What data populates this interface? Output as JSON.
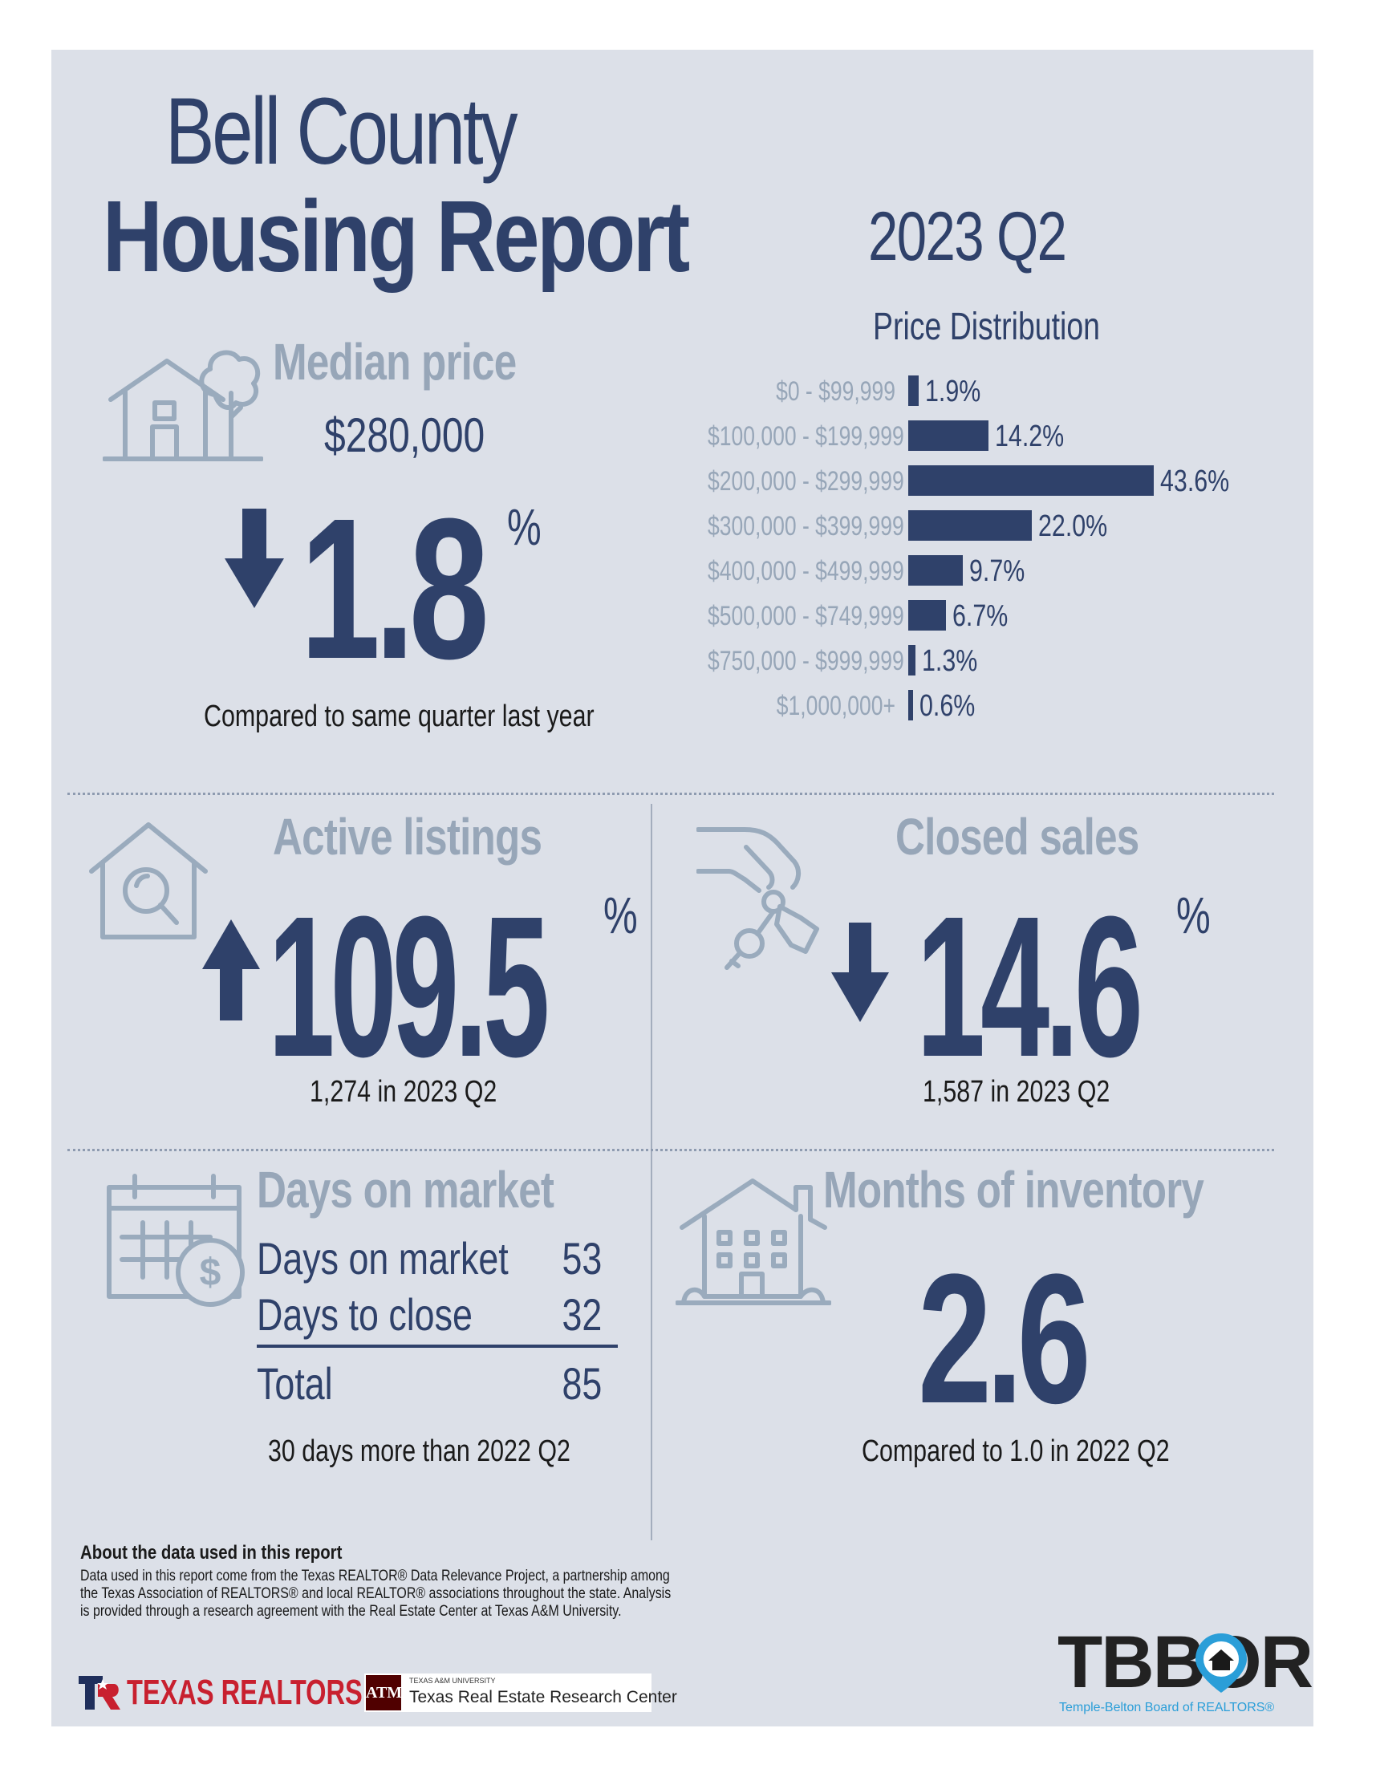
{
  "header": {
    "title_line1": "Bell County",
    "title_line2": "Housing Report",
    "period": "2023 Q2"
  },
  "median_price": {
    "heading": "Median price",
    "value": "$280,000",
    "direction": "down",
    "change": "1.8",
    "percent_sign": "%",
    "note": "Compared to same quarter last year"
  },
  "price_distribution": {
    "title": "Price Distribution"
  },
  "chart_data": {
    "type": "bar",
    "orientation": "horizontal",
    "title": "Price Distribution",
    "categories": [
      "$0 - $99,999",
      "$100,000 - $199,999",
      "$200,000 - $299,999",
      "$300,000 - $399,999",
      "$400,000 - $499,999",
      "$500,000 - $749,999",
      "$750,000 - $999,999",
      "$1,000,000+"
    ],
    "values": [
      1.9,
      14.2,
      43.6,
      22.0,
      9.7,
      6.7,
      1.3,
      0.6
    ],
    "value_labels": [
      "1.9%",
      "14.2%",
      "43.6%",
      "22.0%",
      "9.7%",
      "6.7%",
      "1.3%",
      "0.6%"
    ],
    "grid": false,
    "color": "#2f416a"
  },
  "active_listings": {
    "heading": "Active listings",
    "direction": "up",
    "change": "109.5",
    "percent_sign": "%",
    "note": "1,274 in 2023 Q2"
  },
  "closed_sales": {
    "heading": "Closed sales",
    "direction": "down",
    "change": "14.6",
    "percent_sign": "%",
    "note": "1,587 in 2023 Q2"
  },
  "days_on_market": {
    "heading": "Days on market",
    "rows": [
      {
        "label": "Days on market",
        "value": "53"
      },
      {
        "label": "Days to close",
        "value": "32"
      }
    ],
    "total_label": "Total",
    "total_value": "85",
    "note": "30 days more than 2022 Q2"
  },
  "months_inventory": {
    "heading": "Months of inventory",
    "value": "2.6",
    "note": "Compared to 1.0 in 2022 Q2"
  },
  "about": {
    "heading": "About the data used in this report",
    "body": "Data used in this report come from the Texas REALTOR® Data Relevance Project, a partnership among the Texas Association of REALTORS® and local REALTOR® associations throughout the state. Analysis is provided through a research agreement with the Real Estate Center at Texas A&M University."
  },
  "logos": {
    "texas_realtors": "TEXAS REALTORS",
    "tamu_small": "TEXAS A&M UNIVERSITY",
    "tamu_center": "Texas Real Estate Research Center",
    "tbbor": "TBBOR",
    "tbbor_sub": "Temple-Belton Board of REALTORS®"
  },
  "colors": {
    "navy": "#2f416a",
    "muted": "#97a6b8",
    "panel": "#dce0e8",
    "icon_stroke": "#9aabbd",
    "tbbor_teal": "#2a9ed8",
    "texas_red": "#c8202f",
    "tamu_maroon": "#500000"
  }
}
